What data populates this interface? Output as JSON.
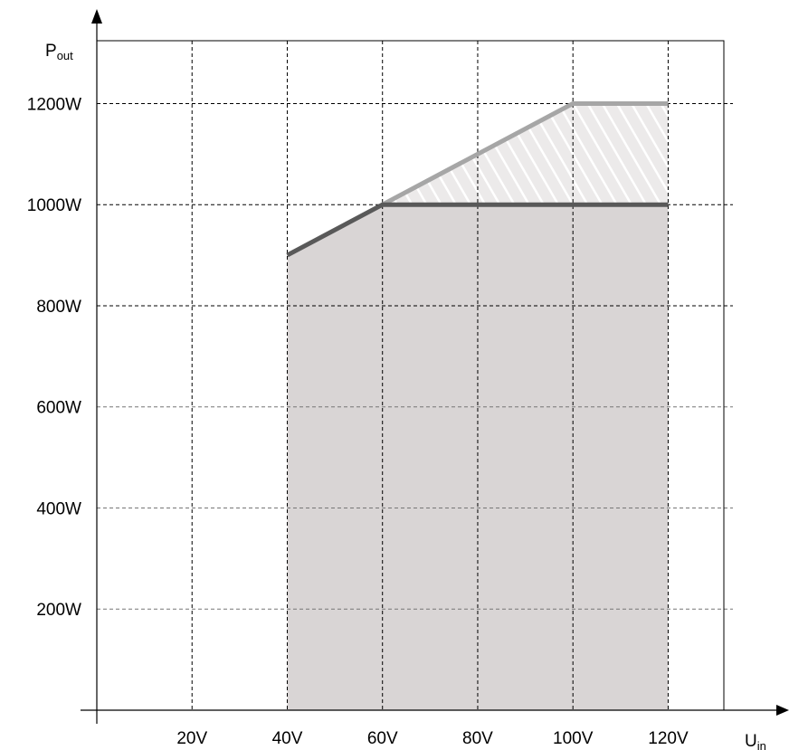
{
  "chart_data": {
    "type": "area",
    "xlabel": {
      "main": "U",
      "sub": "in"
    },
    "ylabel": {
      "main": "P",
      "sub": "out"
    },
    "x_ticks": [
      {
        "value": 20,
        "label": "20V"
      },
      {
        "value": 40,
        "label": "40V"
      },
      {
        "value": 60,
        "label": "60V"
      },
      {
        "value": 80,
        "label": "80V"
      },
      {
        "value": 100,
        "label": "100V"
      },
      {
        "value": 120,
        "label": "120V"
      }
    ],
    "y_ticks": [
      {
        "value": 200,
        "label": "200W"
      },
      {
        "value": 400,
        "label": "400W"
      },
      {
        "value": 600,
        "label": "600W"
      },
      {
        "value": 800,
        "label": "800W"
      },
      {
        "value": 1000,
        "label": "1000W"
      },
      {
        "value": 1200,
        "label": "1200W"
      }
    ],
    "xlim": [
      0,
      131
    ],
    "ylim": [
      0,
      1290
    ],
    "grid": true,
    "series": [
      {
        "x": [
          40,
          60,
          120
        ],
        "y": [
          900,
          1000,
          1000
        ],
        "color": "#595959",
        "fill": "#d9d5d5"
      },
      {
        "x": [
          60,
          100,
          120
        ],
        "y": [
          1000,
          1200,
          1200
        ],
        "color": "#a6a6a6",
        "fill": "hatched"
      }
    ]
  }
}
